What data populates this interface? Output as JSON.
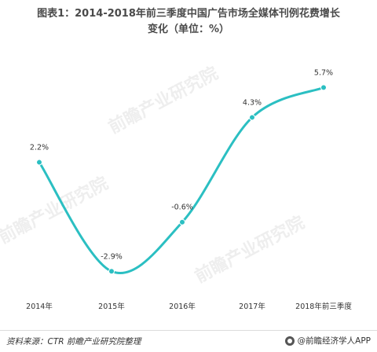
{
  "title_line1": "图表1：2014-2018年前三季度中国广告市场全媒体刊例花费增长",
  "title_line2": "变化（单位：%）",
  "source": "资料来源：CTR 前瞻产业研究院整理",
  "brand": "@前瞻经济学人APP",
  "watermark": "前瞻产业研究院",
  "colors": {
    "line": "#2bbfc2",
    "marker": "#2bbfc2"
  },
  "chart_data": {
    "type": "line",
    "categories": [
      "2014年",
      "2015年",
      "2016年",
      "2017年",
      "2018年前三季度"
    ],
    "values": [
      2.2,
      -2.9,
      -0.6,
      4.3,
      5.7
    ],
    "value_labels": [
      "2.2%",
      "-2.9%",
      "-0.6%",
      "4.3%",
      "5.7%"
    ],
    "smooth": true,
    "grid": false,
    "legend": "none"
  }
}
